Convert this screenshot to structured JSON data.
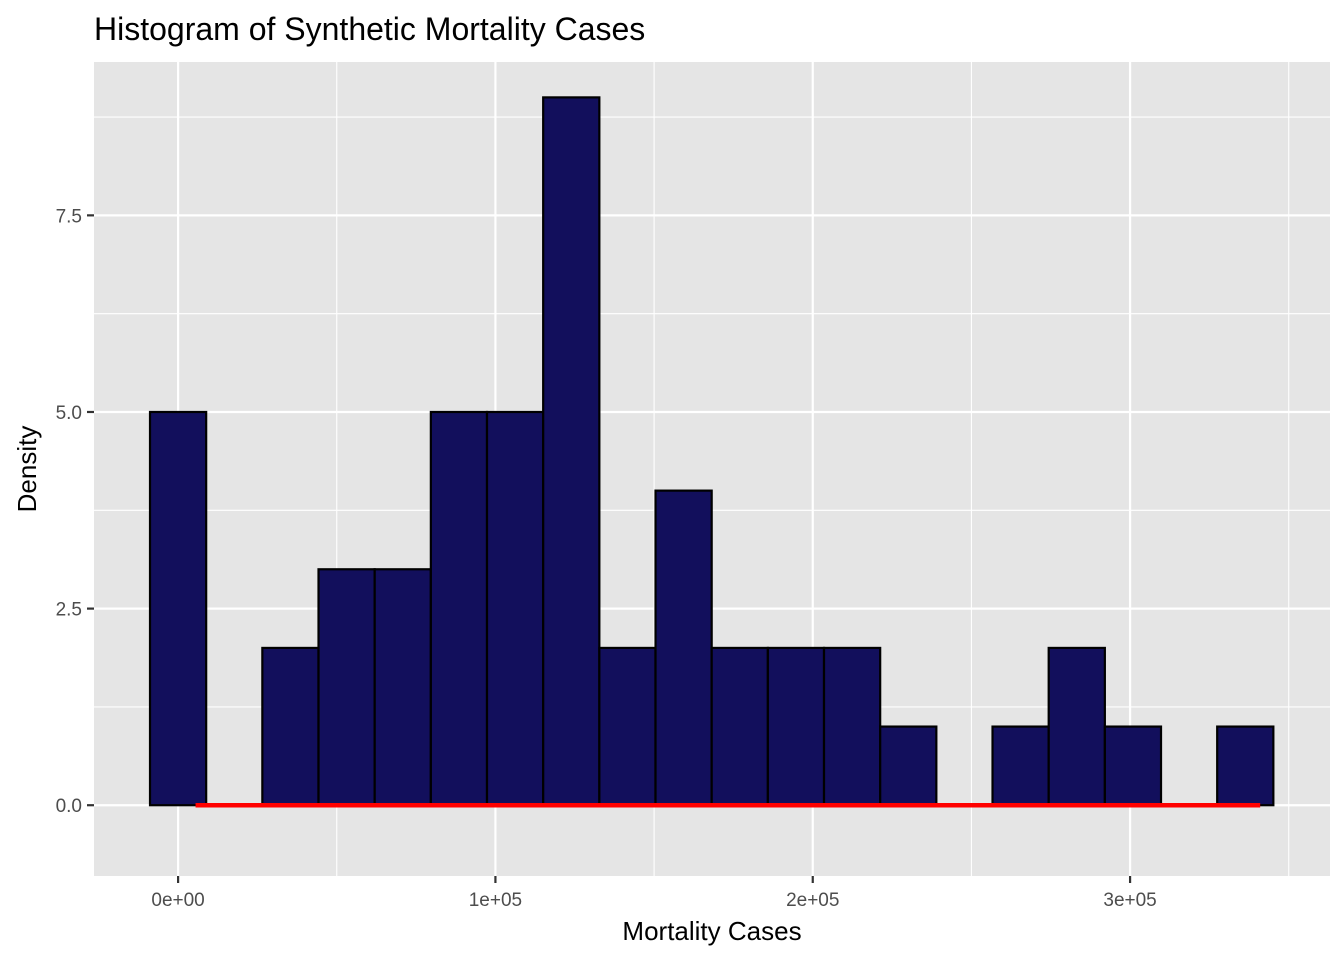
{
  "chart_data": {
    "type": "bar",
    "title": "Histogram of Synthetic Mortality Cases",
    "xlabel": "Mortality Cases",
    "ylabel": "Density",
    "xlim": [
      -26500,
      363000
    ],
    "ylim": [
      -0.9,
      9.45
    ],
    "x_ticks": [
      {
        "value": 0,
        "label": "0e+00"
      },
      {
        "value": 100000,
        "label": "1e+05"
      },
      {
        "value": 200000,
        "label": "2e+05"
      },
      {
        "value": 300000,
        "label": "3e+05"
      }
    ],
    "y_ticks": [
      {
        "value": 0,
        "label": "0.0"
      },
      {
        "value": 2.5,
        "label": "2.5"
      },
      {
        "value": 5,
        "label": "5.0"
      },
      {
        "value": 7.5,
        "label": "7.5"
      }
    ],
    "grid": true,
    "bin_width": 17700,
    "bins": [
      {
        "x0": -8850,
        "x1": 8850,
        "value": 5
      },
      {
        "x0": 8850,
        "x1": 26550,
        "value": 0
      },
      {
        "x0": 26550,
        "x1": 44250,
        "value": 2
      },
      {
        "x0": 44250,
        "x1": 61950,
        "value": 3
      },
      {
        "x0": 61950,
        "x1": 79650,
        "value": 3
      },
      {
        "x0": 79650,
        "x1": 97350,
        "value": 5
      },
      {
        "x0": 97350,
        "x1": 115050,
        "value": 5
      },
      {
        "x0": 115050,
        "x1": 132750,
        "value": 9
      },
      {
        "x0": 132750,
        "x1": 150450,
        "value": 2
      },
      {
        "x0": 150450,
        "x1": 168150,
        "value": 4
      },
      {
        "x0": 168150,
        "x1": 185850,
        "value": 2
      },
      {
        "x0": 185850,
        "x1": 203550,
        "value": 2
      },
      {
        "x0": 203550,
        "x1": 221250,
        "value": 2
      },
      {
        "x0": 221250,
        "x1": 238950,
        "value": 1
      },
      {
        "x0": 238950,
        "x1": 256650,
        "value": 0
      },
      {
        "x0": 256650,
        "x1": 274350,
        "value": 1
      },
      {
        "x0": 274350,
        "x1": 292050,
        "value": 2
      },
      {
        "x0": 292050,
        "x1": 309750,
        "value": 1
      },
      {
        "x0": 309750,
        "x1": 327450,
        "value": 0
      },
      {
        "x0": 327450,
        "x1": 345150,
        "value": 1
      }
    ],
    "density_line": {
      "x": [
        5500,
        341000
      ],
      "y": [
        0,
        0
      ]
    },
    "colors": {
      "panel": "#e5e5e5",
      "grid": "#ffffff",
      "bar_fill": "#120f5c",
      "bar_stroke": "#000000",
      "density": "#ff0000"
    }
  }
}
